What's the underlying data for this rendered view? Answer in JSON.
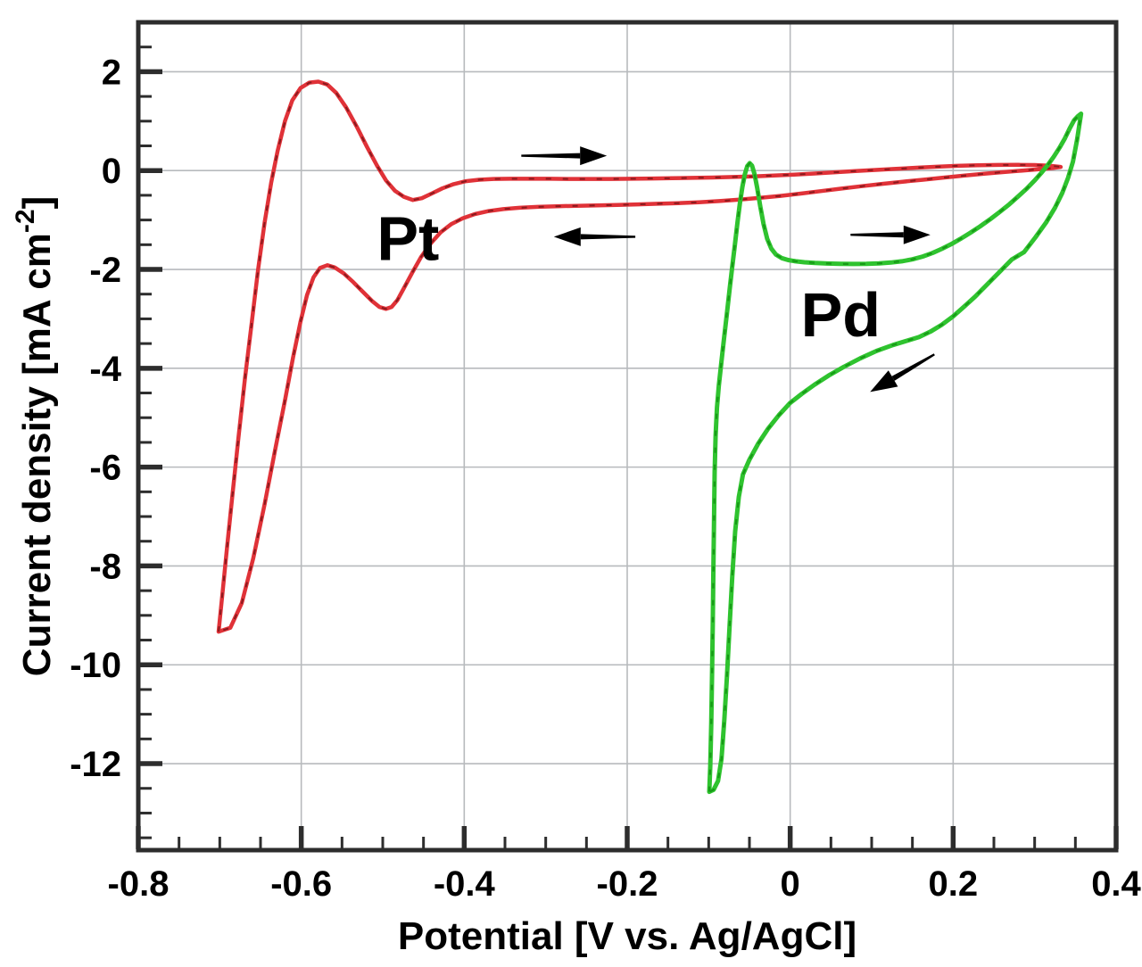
{
  "chart_data": {
    "type": "line",
    "title": "",
    "xlabel": "Potential [V vs. Ag/AgCl]",
    "ylabel_main": "Current density [mA cm",
    "ylabel_sup": "-2",
    "ylabel_end": "]",
    "xlim": [
      -0.8,
      0.4
    ],
    "ylim": [
      -13.75,
      3.0
    ],
    "grid": true,
    "legend_position": "none",
    "x_minor_step": 0.05,
    "y_minor_step": 0.5,
    "xticks": [
      {
        "v": -0.8,
        "label": "-0.8"
      },
      {
        "v": -0.6,
        "label": "-0.6"
      },
      {
        "v": -0.4,
        "label": "-0.4"
      },
      {
        "v": -0.2,
        "label": "-0.2"
      },
      {
        "v": 0,
        "label": "0"
      },
      {
        "v": 0.2,
        "label": "0.2"
      },
      {
        "v": 0.4,
        "label": "0.4"
      }
    ],
    "yticks": [
      {
        "v": 2,
        "label": "2"
      },
      {
        "v": 0,
        "label": "0"
      },
      {
        "v": -2,
        "label": "-2"
      },
      {
        "v": -4,
        "label": "-4"
      },
      {
        "v": -6,
        "label": "-6"
      },
      {
        "v": -8,
        "label": "-8"
      },
      {
        "v": -10,
        "label": "-10"
      },
      {
        "v": -12,
        "label": "-12"
      }
    ],
    "colors": {
      "pt": "#e03238",
      "pt_dark": "#8a1a1e",
      "pd": "#2fc32f",
      "pd_dark": "#179a17",
      "axis": "#2d2d2d",
      "grid": "#b7babd",
      "text": "#000000",
      "arrow": "#000000"
    },
    "series": [
      {
        "name": "Pt",
        "color_key": "pt",
        "dark_key": "pt_dark",
        "width": 4.5,
        "points": [
          [
            -0.7015,
            -9.33
          ],
          [
            -0.697,
            -8.6
          ],
          [
            -0.691,
            -7.6
          ],
          [
            -0.684,
            -6.5
          ],
          [
            -0.677,
            -5.4
          ],
          [
            -0.669,
            -4.2
          ],
          [
            -0.661,
            -3.1
          ],
          [
            -0.653,
            -2.0
          ],
          [
            -0.645,
            -1.05
          ],
          [
            -0.637,
            -0.25
          ],
          [
            -0.629,
            0.4
          ],
          [
            -0.62,
            1.0
          ],
          [
            -0.611,
            1.42
          ],
          [
            -0.601,
            1.67
          ],
          [
            -0.59,
            1.78
          ],
          [
            -0.579,
            1.8
          ],
          [
            -0.568,
            1.74
          ],
          [
            -0.557,
            1.57
          ],
          [
            -0.545,
            1.28
          ],
          [
            -0.532,
            0.89
          ],
          [
            -0.519,
            0.47
          ],
          [
            -0.507,
            0.1
          ],
          [
            -0.496,
            -0.2
          ],
          [
            -0.485,
            -0.41
          ],
          [
            -0.474,
            -0.53
          ],
          [
            -0.463,
            -0.595
          ],
          [
            -0.452,
            -0.56
          ],
          [
            -0.44,
            -0.465
          ],
          [
            -0.427,
            -0.36
          ],
          [
            -0.413,
            -0.275
          ],
          [
            -0.398,
            -0.215
          ],
          [
            -0.382,
            -0.185
          ],
          [
            -0.364,
            -0.17
          ],
          [
            -0.344,
            -0.165
          ],
          [
            -0.32,
            -0.165
          ],
          [
            -0.295,
            -0.165
          ],
          [
            -0.27,
            -0.17
          ],
          [
            -0.245,
            -0.17
          ],
          [
            -0.22,
            -0.17
          ],
          [
            -0.195,
            -0.165
          ],
          [
            -0.17,
            -0.16
          ],
          [
            -0.145,
            -0.155
          ],
          [
            -0.12,
            -0.148
          ],
          [
            -0.095,
            -0.14
          ],
          [
            -0.07,
            -0.13
          ],
          [
            -0.045,
            -0.117
          ],
          [
            -0.02,
            -0.1
          ],
          [
            0.005,
            -0.082
          ],
          [
            0.03,
            -0.06
          ],
          [
            0.055,
            -0.035
          ],
          [
            0.08,
            -0.01
          ],
          [
            0.105,
            0.012
          ],
          [
            0.13,
            0.035
          ],
          [
            0.155,
            0.058
          ],
          [
            0.18,
            0.078
          ],
          [
            0.205,
            0.095
          ],
          [
            0.23,
            0.107
          ],
          [
            0.255,
            0.113
          ],
          [
            0.28,
            0.115
          ],
          [
            0.3,
            0.112
          ],
          [
            0.318,
            0.1
          ],
          [
            0.332,
            0.075
          ],
          [
            0.322,
            0.05
          ],
          [
            0.305,
            0.025
          ],
          [
            0.285,
            0.0
          ],
          [
            0.262,
            -0.03
          ],
          [
            0.238,
            -0.065
          ],
          [
            0.213,
            -0.103
          ],
          [
            0.188,
            -0.143
          ],
          [
            0.163,
            -0.185
          ],
          [
            0.138,
            -0.225
          ],
          [
            0.113,
            -0.268
          ],
          [
            0.088,
            -0.315
          ],
          [
            0.063,
            -0.365
          ],
          [
            0.038,
            -0.415
          ],
          [
            0.013,
            -0.465
          ],
          [
            -0.012,
            -0.512
          ],
          [
            -0.037,
            -0.553
          ],
          [
            -0.062,
            -0.588
          ],
          [
            -0.087,
            -0.617
          ],
          [
            -0.112,
            -0.64
          ],
          [
            -0.137,
            -0.658
          ],
          [
            -0.162,
            -0.672
          ],
          [
            -0.187,
            -0.684
          ],
          [
            -0.212,
            -0.694
          ],
          [
            -0.237,
            -0.703
          ],
          [
            -0.262,
            -0.712
          ],
          [
            -0.287,
            -0.722
          ],
          [
            -0.31,
            -0.735
          ],
          [
            -0.332,
            -0.753
          ],
          [
            -0.352,
            -0.78
          ],
          [
            -0.37,
            -0.82
          ],
          [
            -0.387,
            -0.88
          ],
          [
            -0.402,
            -0.965
          ],
          [
            -0.416,
            -1.085
          ],
          [
            -0.429,
            -1.25
          ],
          [
            -0.441,
            -1.47
          ],
          [
            -0.453,
            -1.75
          ],
          [
            -0.464,
            -2.07
          ],
          [
            -0.474,
            -2.38
          ],
          [
            -0.482,
            -2.62
          ],
          [
            -0.489,
            -2.76
          ],
          [
            -0.496,
            -2.8
          ],
          [
            -0.504,
            -2.76
          ],
          [
            -0.513,
            -2.64
          ],
          [
            -0.524,
            -2.46
          ],
          [
            -0.536,
            -2.26
          ],
          [
            -0.548,
            -2.08
          ],
          [
            -0.559,
            -1.96
          ],
          [
            -0.568,
            -1.915
          ],
          [
            -0.577,
            -1.97
          ],
          [
            -0.585,
            -2.16
          ],
          [
            -0.593,
            -2.52
          ],
          [
            -0.601,
            -3.06
          ],
          [
            -0.61,
            -3.78
          ],
          [
            -0.62,
            -4.65
          ],
          [
            -0.632,
            -5.65
          ],
          [
            -0.645,
            -6.75
          ],
          [
            -0.659,
            -7.85
          ],
          [
            -0.673,
            -8.75
          ],
          [
            -0.687,
            -9.25
          ],
          [
            -0.7015,
            -9.33
          ]
        ]
      },
      {
        "name": "Pd",
        "color_key": "pd",
        "dark_key": "pd_dark",
        "width": 5,
        "points": [
          [
            -0.0993,
            -12.57
          ],
          [
            -0.0981,
            -12.05
          ],
          [
            -0.0969,
            -11.2
          ],
          [
            -0.0959,
            -10.2
          ],
          [
            -0.095,
            -9.2
          ],
          [
            -0.0943,
            -8.2
          ],
          [
            -0.0935,
            -7.1
          ],
          [
            -0.0927,
            -6.1
          ],
          [
            -0.0915,
            -5.35
          ],
          [
            -0.0898,
            -4.8
          ],
          [
            -0.0875,
            -4.35
          ],
          [
            -0.0846,
            -3.9
          ],
          [
            -0.0812,
            -3.4
          ],
          [
            -0.0777,
            -2.9
          ],
          [
            -0.0743,
            -2.4
          ],
          [
            -0.0711,
            -1.95
          ],
          [
            -0.0679,
            -1.5
          ],
          [
            -0.0647,
            -1.05
          ],
          [
            -0.0616,
            -0.65
          ],
          [
            -0.0586,
            -0.33
          ],
          [
            -0.0556,
            -0.07
          ],
          [
            -0.0526,
            0.09
          ],
          [
            -0.0497,
            0.15
          ],
          [
            -0.0468,
            0.1
          ],
          [
            -0.0438,
            -0.07
          ],
          [
            -0.0405,
            -0.35
          ],
          [
            -0.0368,
            -0.72
          ],
          [
            -0.0327,
            -1.08
          ],
          [
            -0.0282,
            -1.38
          ],
          [
            -0.0232,
            -1.58
          ],
          [
            -0.0175,
            -1.7
          ],
          [
            -0.0105,
            -1.77
          ],
          [
            -0.0025,
            -1.81
          ],
          [
            0.0065,
            -1.835
          ],
          [
            0.0175,
            -1.855
          ],
          [
            0.0305,
            -1.87
          ],
          [
            0.0455,
            -1.88
          ],
          [
            0.0615,
            -1.888
          ],
          [
            0.0775,
            -1.89
          ],
          [
            0.0935,
            -1.888
          ],
          [
            0.109,
            -1.878
          ],
          [
            0.1235,
            -1.86
          ],
          [
            0.137,
            -1.835
          ],
          [
            0.15,
            -1.795
          ],
          [
            0.1625,
            -1.74
          ],
          [
            0.1745,
            -1.67
          ],
          [
            0.186,
            -1.585
          ],
          [
            0.1975,
            -1.49
          ],
          [
            0.209,
            -1.38
          ],
          [
            0.221,
            -1.26
          ],
          [
            0.233,
            -1.13
          ],
          [
            0.245,
            -0.99
          ],
          [
            0.257,
            -0.84
          ],
          [
            0.269,
            -0.68
          ],
          [
            0.28,
            -0.52
          ],
          [
            0.29,
            -0.37
          ],
          [
            0.2995,
            -0.21
          ],
          [
            0.308,
            -0.05
          ],
          [
            0.316,
            0.11
          ],
          [
            0.3235,
            0.28
          ],
          [
            0.3305,
            0.46
          ],
          [
            0.337,
            0.65
          ],
          [
            0.343,
            0.85
          ],
          [
            0.3485,
            1.02
          ],
          [
            0.353,
            1.1
          ],
          [
            0.357,
            1.15
          ],
          [
            0.352,
            0.62
          ],
          [
            0.347,
            0.18
          ],
          [
            0.341,
            -0.15
          ],
          [
            0.334,
            -0.45
          ],
          [
            0.325,
            -0.75
          ],
          [
            0.314,
            -1.05
          ],
          [
            0.301,
            -1.35
          ],
          [
            0.287,
            -1.65
          ],
          [
            0.272,
            -1.8
          ],
          [
            0.257,
            -2.05
          ],
          [
            0.242,
            -2.3
          ],
          [
            0.227,
            -2.55
          ],
          [
            0.213,
            -2.76
          ],
          [
            0.2,
            -2.95
          ],
          [
            0.186,
            -3.12
          ],
          [
            0.172,
            -3.26
          ],
          [
            0.158,
            -3.37
          ],
          [
            0.142,
            -3.45
          ],
          [
            0.126,
            -3.53
          ],
          [
            0.106,
            -3.65
          ],
          [
            0.086,
            -3.8
          ],
          [
            0.066,
            -3.97
          ],
          [
            0.047,
            -4.15
          ],
          [
            0.03,
            -4.33
          ],
          [
            0.014,
            -4.52
          ],
          [
            0.0,
            -4.7
          ],
          [
            -0.014,
            -4.95
          ],
          [
            -0.027,
            -5.22
          ],
          [
            -0.039,
            -5.52
          ],
          [
            -0.05,
            -5.85
          ],
          [
            -0.058,
            -6.15
          ],
          [
            -0.063,
            -6.6
          ],
          [
            -0.0675,
            -7.3
          ],
          [
            -0.071,
            -8.2
          ],
          [
            -0.0743,
            -9.2
          ],
          [
            -0.0775,
            -10.2
          ],
          [
            -0.0808,
            -11.1
          ],
          [
            -0.0843,
            -11.9
          ],
          [
            -0.0885,
            -12.35
          ],
          [
            -0.094,
            -12.53
          ],
          [
            -0.0993,
            -12.57
          ]
        ]
      }
    ],
    "annotations": [
      {
        "text": "Pt",
        "x": -0.469,
        "y": -1.36
      },
      {
        "text": "Pd",
        "x": 0.062,
        "y": -2.9
      }
    ],
    "arrows": [
      {
        "from": [
          -0.33,
          0.3
        ],
        "to": [
          -0.225,
          0.3
        ]
      },
      {
        "from": [
          -0.19,
          -1.34
        ],
        "to": [
          -0.29,
          -1.34
        ]
      },
      {
        "from": [
          0.074,
          -1.3
        ],
        "to": [
          0.172,
          -1.3
        ]
      },
      {
        "from": [
          0.177,
          -3.72
        ],
        "to": [
          0.098,
          -4.48
        ]
      }
    ]
  }
}
